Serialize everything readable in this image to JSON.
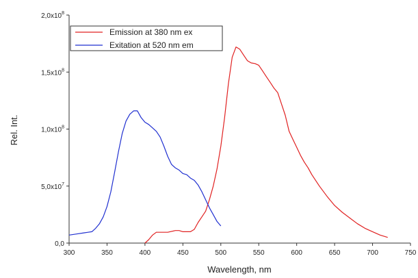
{
  "chart_data": {
    "type": "line",
    "title": "",
    "xlabel": "Wavelength, nm",
    "ylabel": "Rel. Int.",
    "xlim": [
      300,
      750
    ],
    "ylim": [
      0,
      200000000
    ],
    "x_ticks": [
      300,
      350,
      400,
      450,
      500,
      550,
      600,
      650,
      700,
      750
    ],
    "y_ticks": [
      {
        "value": 0,
        "mantissa": "0,0",
        "exponent": ""
      },
      {
        "value": 50000000,
        "mantissa": "5,0x10",
        "exponent": "7"
      },
      {
        "value": 100000000,
        "mantissa": "1,0x10",
        "exponent": "8"
      },
      {
        "value": 150000000,
        "mantissa": "1,5x10",
        "exponent": "8"
      },
      {
        "value": 200000000,
        "mantissa": "2,0x10",
        "exponent": "8"
      }
    ],
    "grid": false,
    "legend_position": "top-left",
    "series": [
      {
        "name": "Emission at 380 nm ex",
        "color": "#e02020",
        "points": [
          [
            400,
            0
          ],
          [
            405,
            3000000
          ],
          [
            410,
            7000000
          ],
          [
            415,
            9500000
          ],
          [
            420,
            9500000
          ],
          [
            430,
            9500000
          ],
          [
            440,
            11000000
          ],
          [
            445,
            11000000
          ],
          [
            450,
            10000000
          ],
          [
            460,
            10000000
          ],
          [
            465,
            12000000
          ],
          [
            470,
            18000000
          ],
          [
            475,
            23000000
          ],
          [
            480,
            28000000
          ],
          [
            485,
            38000000
          ],
          [
            490,
            50000000
          ],
          [
            495,
            65000000
          ],
          [
            500,
            85000000
          ],
          [
            505,
            110000000
          ],
          [
            510,
            140000000
          ],
          [
            515,
            163000000
          ],
          [
            520,
            172000000
          ],
          [
            525,
            170000000
          ],
          [
            530,
            165000000
          ],
          [
            535,
            160000000
          ],
          [
            540,
            158000000
          ],
          [
            545,
            157500000
          ],
          [
            550,
            156000000
          ],
          [
            555,
            151000000
          ],
          [
            560,
            146000000
          ],
          [
            565,
            141000000
          ],
          [
            570,
            136000000
          ],
          [
            575,
            132000000
          ],
          [
            580,
            122000000
          ],
          [
            585,
            112000000
          ],
          [
            590,
            98000000
          ],
          [
            595,
            91000000
          ],
          [
            600,
            84000000
          ],
          [
            605,
            77000000
          ],
          [
            610,
            71000000
          ],
          [
            615,
            66000000
          ],
          [
            620,
            60000000
          ],
          [
            630,
            50000000
          ],
          [
            640,
            41000000
          ],
          [
            650,
            33000000
          ],
          [
            660,
            27000000
          ],
          [
            670,
            22000000
          ],
          [
            680,
            17000000
          ],
          [
            690,
            13000000
          ],
          [
            700,
            10000000
          ],
          [
            710,
            7000000
          ],
          [
            720,
            5000000
          ]
        ]
      },
      {
        "name": "Exitation at 520 nm em",
        "color": "#1f2fd0",
        "points": [
          [
            300,
            7000000
          ],
          [
            310,
            8000000
          ],
          [
            320,
            9000000
          ],
          [
            330,
            10000000
          ],
          [
            335,
            13000000
          ],
          [
            340,
            17000000
          ],
          [
            345,
            23000000
          ],
          [
            350,
            32000000
          ],
          [
            355,
            45000000
          ],
          [
            360,
            62000000
          ],
          [
            365,
            80000000
          ],
          [
            370,
            96000000
          ],
          [
            375,
            107000000
          ],
          [
            380,
            113000000
          ],
          [
            385,
            116000000
          ],
          [
            390,
            116000000
          ],
          [
            395,
            110000000
          ],
          [
            400,
            106000000
          ],
          [
            405,
            104000000
          ],
          [
            410,
            101000000
          ],
          [
            415,
            98000000
          ],
          [
            420,
            93000000
          ],
          [
            425,
            85000000
          ],
          [
            430,
            76000000
          ],
          [
            435,
            69000000
          ],
          [
            440,
            66000000
          ],
          [
            445,
            64000000
          ],
          [
            450,
            61000000
          ],
          [
            455,
            60000000
          ],
          [
            460,
            57000000
          ],
          [
            465,
            55000000
          ],
          [
            470,
            51000000
          ],
          [
            475,
            45000000
          ],
          [
            480,
            38000000
          ],
          [
            485,
            31000000
          ],
          [
            490,
            25000000
          ],
          [
            495,
            19000000
          ],
          [
            500,
            15000000
          ]
        ]
      }
    ]
  }
}
